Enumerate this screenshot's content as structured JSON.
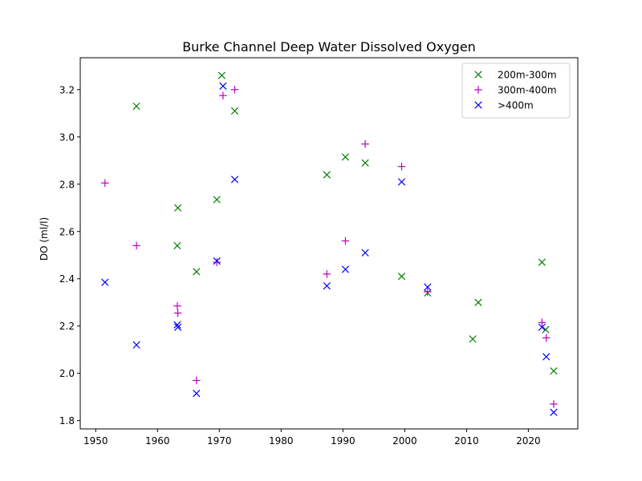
{
  "chart_data": {
    "type": "scatter",
    "title": "Burke Channel Deep Water Dissolved Oxygen",
    "xlabel": "",
    "ylabel": "DO (ml/l)",
    "xlim": [
      1947.5,
      2028
    ],
    "ylim": [
      1.765,
      3.335
    ],
    "x_ticks": [
      1950,
      1960,
      1970,
      1980,
      1990,
      2000,
      2010,
      2020
    ],
    "y_ticks": [
      1.8,
      2.0,
      2.2,
      2.4,
      2.6,
      2.8,
      3.0,
      3.2
    ],
    "grid": false,
    "legend_position": "top-right",
    "series": [
      {
        "name": "200m-300m",
        "color": "#008000",
        "marker": "x",
        "points": [
          [
            1956.6,
            3.13
          ],
          [
            1963.3,
            2.7
          ],
          [
            1963.2,
            2.54
          ],
          [
            1966.3,
            2.43
          ],
          [
            1969.6,
            2.735
          ],
          [
            1970.4,
            3.26
          ],
          [
            1972.5,
            3.11
          ],
          [
            1987.4,
            2.84
          ],
          [
            1990.4,
            2.915
          ],
          [
            1993.6,
            2.89
          ],
          [
            1999.5,
            2.41
          ],
          [
            2003.7,
            2.34
          ],
          [
            2011.0,
            2.145
          ],
          [
            2011.9,
            2.3
          ],
          [
            2022.2,
            2.47
          ],
          [
            2022.8,
            2.185
          ],
          [
            2024.1,
            2.01
          ]
        ]
      },
      {
        "name": "300m-400m",
        "color": "#bf00bf",
        "marker": "+",
        "points": [
          [
            1951.5,
            2.805
          ],
          [
            1956.6,
            2.54
          ],
          [
            1963.2,
            2.285
          ],
          [
            1963.3,
            2.255
          ],
          [
            1966.3,
            1.97
          ],
          [
            1969.6,
            2.47
          ],
          [
            1970.6,
            3.175
          ],
          [
            1972.5,
            3.2
          ],
          [
            1987.4,
            2.42
          ],
          [
            1990.4,
            2.56
          ],
          [
            1993.6,
            2.97
          ],
          [
            1999.5,
            2.875
          ],
          [
            2003.7,
            2.345
          ],
          [
            2022.2,
            2.215
          ],
          [
            2022.9,
            2.15
          ],
          [
            2024.1,
            1.87
          ]
        ]
      },
      {
        "name": ">400m",
        "color": "#0000ff",
        "marker": "x",
        "points": [
          [
            1951.5,
            2.385
          ],
          [
            1956.6,
            2.12
          ],
          [
            1963.2,
            2.205
          ],
          [
            1963.3,
            2.195
          ],
          [
            1966.3,
            1.915
          ],
          [
            1969.6,
            2.475
          ],
          [
            1970.6,
            3.215
          ],
          [
            1972.5,
            2.82
          ],
          [
            1987.4,
            2.37
          ],
          [
            1990.4,
            2.44
          ],
          [
            1993.6,
            2.51
          ],
          [
            1999.5,
            2.81
          ],
          [
            2003.7,
            2.365
          ],
          [
            2022.2,
            2.195
          ],
          [
            2022.9,
            2.07
          ],
          [
            2024.1,
            1.835
          ]
        ]
      }
    ]
  }
}
